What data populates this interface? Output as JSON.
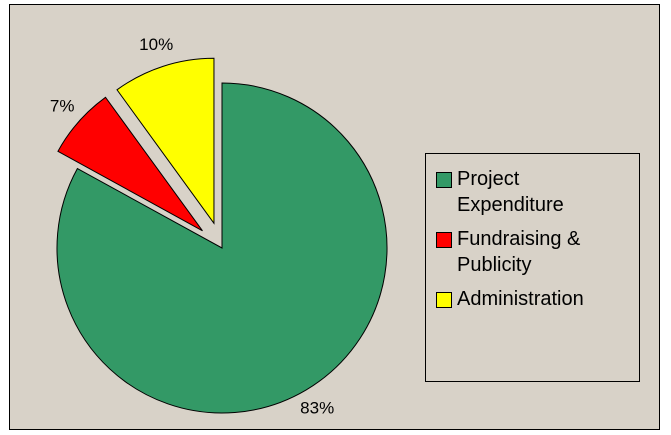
{
  "chart_data": {
    "type": "pie",
    "categories": [
      "Project Expenditure",
      "Fundraising & Publicity",
      "Administration"
    ],
    "values": [
      83,
      7,
      10
    ],
    "value_labels": [
      "83%",
      "7%",
      "10%"
    ],
    "colors": [
      "#339966",
      "#ff0000",
      "#ffff00"
    ],
    "legend": "right"
  }
}
